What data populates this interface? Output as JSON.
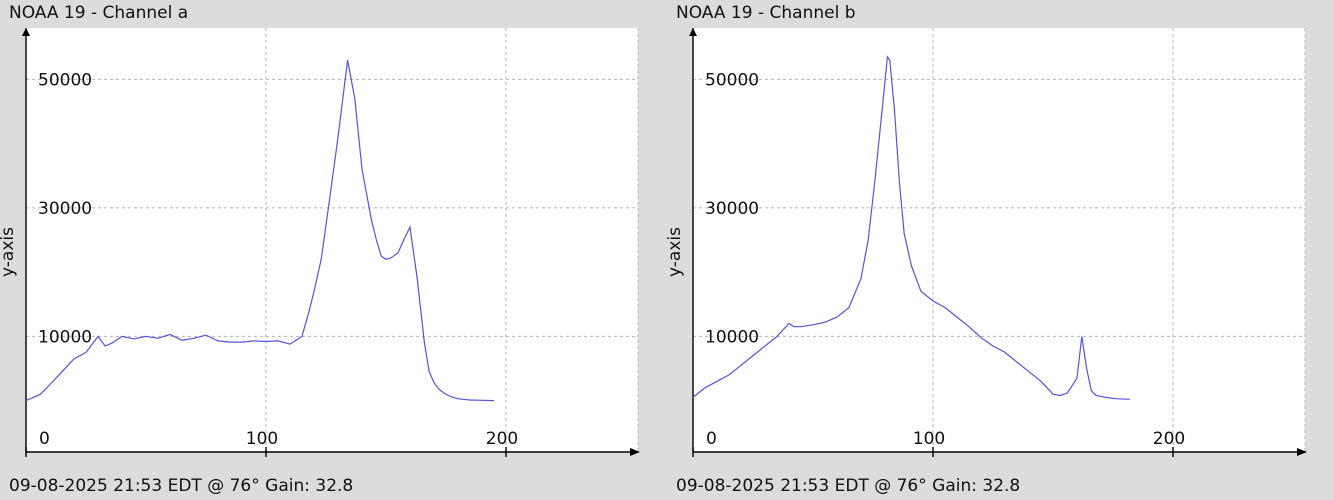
{
  "chart_data": [
    {
      "type": "line",
      "title": "NOAA 19 - Channel a",
      "footer": "09-08-2025 21:53 EDT @ 76° Gain: 32.8",
      "xlabel": "",
      "ylabel": "y-axis",
      "xlim": [
        0,
        255
      ],
      "ylim": [
        -8000,
        58000
      ],
      "xticks": [
        {
          "v": 0,
          "label": "0"
        },
        {
          "v": 100,
          "label": "100"
        },
        {
          "v": 200,
          "label": "200"
        }
      ],
      "yticks": [
        {
          "v": 10000,
          "label": "10000"
        },
        {
          "v": 30000,
          "label": "30000"
        },
        {
          "v": 50000,
          "label": "50000"
        }
      ],
      "xgrid": [
        100,
        200
      ],
      "ygrid": [
        10000,
        30000,
        50000
      ],
      "grid": true,
      "series": [
        {
          "color": "#5454d8",
          "x": [
            0,
            3,
            6,
            10,
            15,
            20,
            25,
            30,
            33,
            36,
            40,
            45,
            50,
            55,
            60,
            65,
            70,
            75,
            80,
            85,
            90,
            95,
            100,
            105,
            110,
            115,
            118,
            120,
            123,
            126,
            130,
            134,
            137,
            140,
            142,
            144,
            146,
            148,
            150,
            152,
            155,
            158,
            160,
            163,
            166,
            168,
            170,
            172,
            174,
            176,
            178,
            180,
            182,
            185,
            190,
            195
          ],
          "y": [
            0,
            500,
            1000,
            2500,
            4500,
            6500,
            7500,
            10000,
            8500,
            9000,
            10000,
            9600,
            10000,
            9700,
            10300,
            9400,
            9700,
            10200,
            9300,
            9100,
            9100,
            9300,
            9200,
            9300,
            8800,
            10000,
            14000,
            17000,
            22000,
            30000,
            41000,
            53000,
            47000,
            36000,
            32000,
            28000,
            25000,
            22500,
            22000,
            22200,
            23000,
            25500,
            27000,
            19000,
            9000,
            4500,
            2800,
            1800,
            1200,
            800,
            500,
            300,
            200,
            100,
            50,
            0
          ]
        }
      ]
    },
    {
      "type": "line",
      "title": "NOAA 19 - Channel b",
      "footer": "09-08-2025 21:53 EDT @ 76° Gain: 32.8",
      "xlabel": "",
      "ylabel": "y-axis",
      "xlim": [
        0,
        255
      ],
      "ylim": [
        -8000,
        58000
      ],
      "xticks": [
        {
          "v": 0,
          "label": "0"
        },
        {
          "v": 100,
          "label": "100"
        },
        {
          "v": 200,
          "label": "200"
        }
      ],
      "yticks": [
        {
          "v": 10000,
          "label": "10000"
        },
        {
          "v": 30000,
          "label": "30000"
        },
        {
          "v": 50000,
          "label": "50000"
        }
      ],
      "xgrid": [
        100,
        200
      ],
      "ygrid": [
        10000,
        30000,
        50000
      ],
      "grid": true,
      "series": [
        {
          "color": "#5454d8",
          "x": [
            0,
            5,
            10,
            15,
            20,
            25,
            30,
            35,
            40,
            42,
            45,
            50,
            55,
            60,
            65,
            70,
            73,
            76,
            79,
            81,
            82,
            84,
            86,
            88,
            91,
            95,
            100,
            105,
            110,
            115,
            120,
            125,
            130,
            135,
            140,
            145,
            150,
            153,
            156,
            160,
            162,
            164,
            166,
            168,
            172,
            176,
            182
          ],
          "y": [
            500,
            2000,
            3000,
            4000,
            5500,
            7000,
            8500,
            10000,
            12000,
            11500,
            11500,
            11800,
            12200,
            13000,
            14500,
            19000,
            25000,
            35000,
            46000,
            53500,
            53000,
            45000,
            34000,
            26000,
            21000,
            17000,
            15500,
            14500,
            13000,
            11500,
            9800,
            8500,
            7500,
            6000,
            4500,
            3000,
            1000,
            800,
            1200,
            3500,
            10000,
            5000,
            1500,
            800,
            500,
            300,
            200
          ]
        }
      ]
    }
  ]
}
